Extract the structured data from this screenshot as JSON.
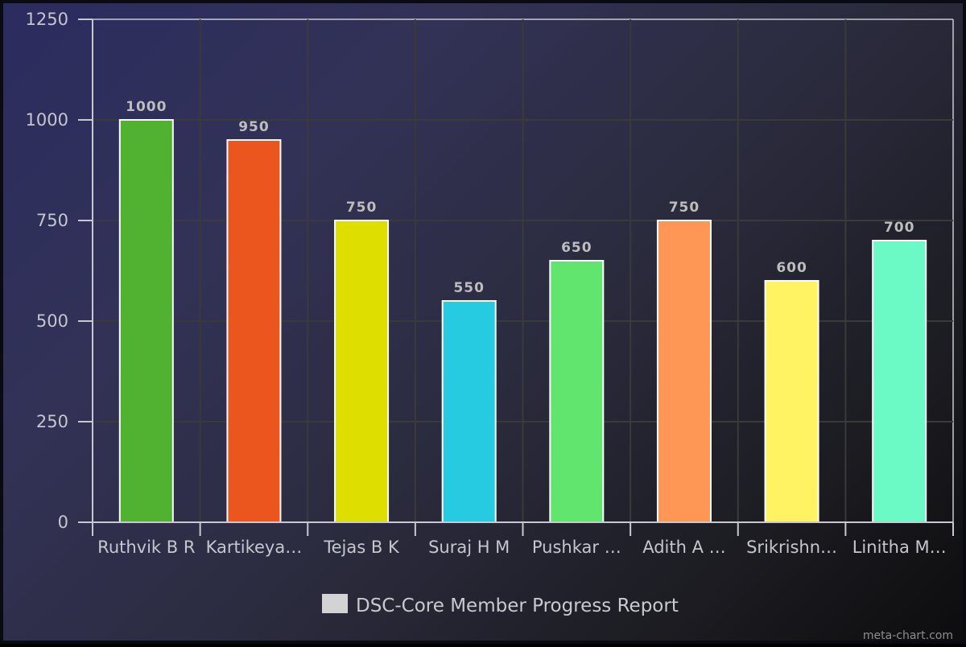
{
  "chart_data": {
    "type": "bar",
    "categories": [
      "Ruthvik B R",
      "Kartikeya…",
      "Tejas B K",
      "Suraj H M",
      "Pushkar …",
      "Adith A …",
      "Srikrishn…",
      "Linitha M…"
    ],
    "values": [
      1000,
      950,
      750,
      550,
      650,
      750,
      600,
      700
    ],
    "value_labels": [
      "1000",
      "950",
      "750",
      "550",
      "650",
      "750",
      "600",
      "700"
    ],
    "colors": [
      "#51b232",
      "#ea561d",
      "#dedf00",
      "#26cbe2",
      "#62e56e",
      "#fe9655",
      "#fff263",
      "#6bf9c5"
    ],
    "series": [
      {
        "name": "DSC-Core Member Progress Report",
        "values": [
          1000,
          950,
          750,
          550,
          650,
          750,
          600,
          700
        ]
      }
    ],
    "yticks": [
      "0",
      "250",
      "500",
      "750",
      "1000",
      "1250"
    ],
    "ylim": [
      0,
      1250
    ],
    "grid": true,
    "legend_position": "bottom",
    "legend_swatch_color": "#d3d3d3",
    "title": "",
    "xlabel": "",
    "ylabel": ""
  },
  "legend": {
    "label": "DSC-Core Member Progress Report"
  },
  "watermark": "meta-chart.com"
}
